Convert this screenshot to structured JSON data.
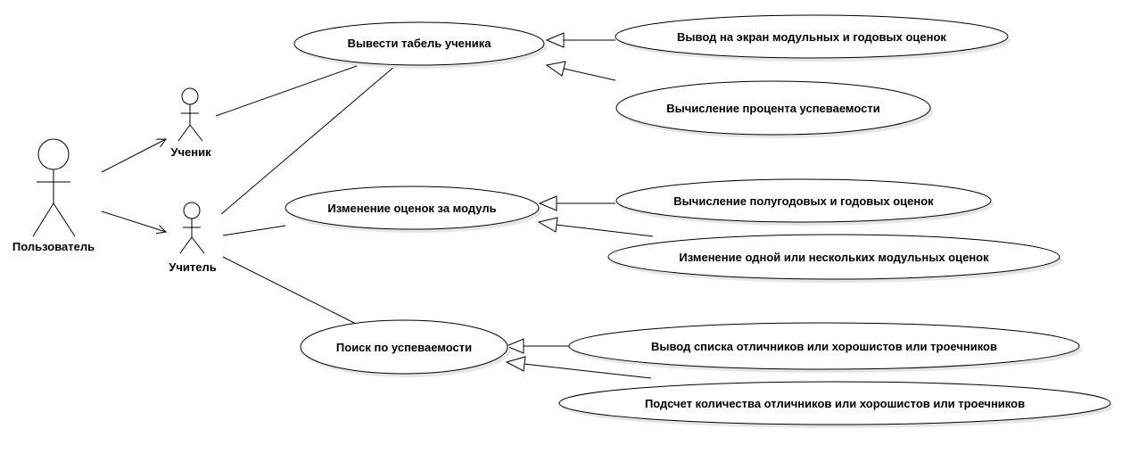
{
  "actors": {
    "user": "Пользователь",
    "student": "Ученик",
    "teacher": "Учитель"
  },
  "use_cases": {
    "show_report": "Вывести табель ученика",
    "show_grades": "Вывод на экран модульных и годовых оценок",
    "calc_percent": "Вычисление процента успеваемости",
    "change_grades": "Изменение оценок за модуль",
    "calc_half_year": "Вычисление полугодовых и годовых оценок",
    "change_module": "Изменение одной или нескольких модульных оценок",
    "search": "Поиск по успеваемости",
    "list_students": "Вывод списка отличников или хорошистов или троечников",
    "count_students": "Подсчет количества отличников или хорошистов или троечников"
  }
}
